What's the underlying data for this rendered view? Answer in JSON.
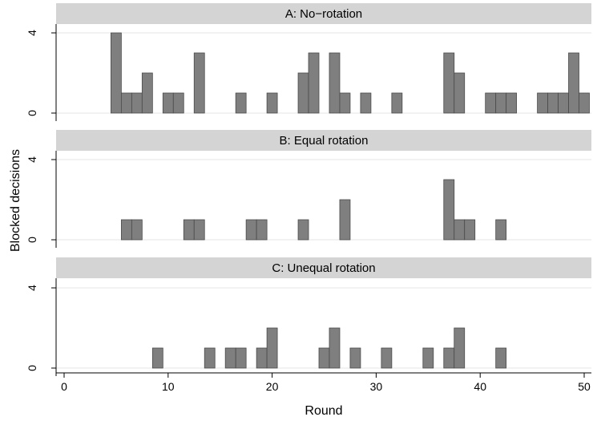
{
  "chart_data": {
    "type": "bar",
    "xlabel": "Round",
    "ylabel": "Blocked decisions",
    "xlim": [
      0,
      50
    ],
    "ylim": [
      0,
      4
    ],
    "x_ticks": [
      0,
      10,
      20,
      30,
      40,
      50
    ],
    "y_ticks": [
      0,
      4
    ],
    "grid": true,
    "bar_color": "#7f7f7f",
    "strip_color": "#d4d4d4",
    "panels": [
      {
        "title": "A: No−rotation",
        "bars": [
          {
            "x": 5,
            "y": 4
          },
          {
            "x": 6,
            "y": 1
          },
          {
            "x": 7,
            "y": 1
          },
          {
            "x": 8,
            "y": 2
          },
          {
            "x": 10,
            "y": 1
          },
          {
            "x": 11,
            "y": 1
          },
          {
            "x": 13,
            "y": 3
          },
          {
            "x": 17,
            "y": 1
          },
          {
            "x": 20,
            "y": 1
          },
          {
            "x": 23,
            "y": 2
          },
          {
            "x": 24,
            "y": 3
          },
          {
            "x": 26,
            "y": 3
          },
          {
            "x": 27,
            "y": 1
          },
          {
            "x": 29,
            "y": 1
          },
          {
            "x": 32,
            "y": 1
          },
          {
            "x": 37,
            "y": 3
          },
          {
            "x": 38,
            "y": 2
          },
          {
            "x": 41,
            "y": 1
          },
          {
            "x": 42,
            "y": 1
          },
          {
            "x": 43,
            "y": 1
          },
          {
            "x": 46,
            "y": 1
          },
          {
            "x": 47,
            "y": 1
          },
          {
            "x": 48,
            "y": 1
          },
          {
            "x": 49,
            "y": 3
          },
          {
            "x": 50,
            "y": 1
          }
        ]
      },
      {
        "title": "B: Equal rotation",
        "bars": [
          {
            "x": 6,
            "y": 1
          },
          {
            "x": 7,
            "y": 1
          },
          {
            "x": 12,
            "y": 1
          },
          {
            "x": 13,
            "y": 1
          },
          {
            "x": 18,
            "y": 1
          },
          {
            "x": 19,
            "y": 1
          },
          {
            "x": 23,
            "y": 1
          },
          {
            "x": 27,
            "y": 2
          },
          {
            "x": 37,
            "y": 3
          },
          {
            "x": 38,
            "y": 1
          },
          {
            "x": 39,
            "y": 1
          },
          {
            "x": 42,
            "y": 1
          }
        ]
      },
      {
        "title": "C: Unequal rotation",
        "bars": [
          {
            "x": 9,
            "y": 1
          },
          {
            "x": 14,
            "y": 1
          },
          {
            "x": 16,
            "y": 1
          },
          {
            "x": 17,
            "y": 1
          },
          {
            "x": 19,
            "y": 1
          },
          {
            "x": 20,
            "y": 2
          },
          {
            "x": 25,
            "y": 1
          },
          {
            "x": 26,
            "y": 2
          },
          {
            "x": 28,
            "y": 1
          },
          {
            "x": 31,
            "y": 1
          },
          {
            "x": 35,
            "y": 1
          },
          {
            "x": 37,
            "y": 1
          },
          {
            "x": 38,
            "y": 2
          },
          {
            "x": 42,
            "y": 1
          }
        ]
      }
    ]
  }
}
